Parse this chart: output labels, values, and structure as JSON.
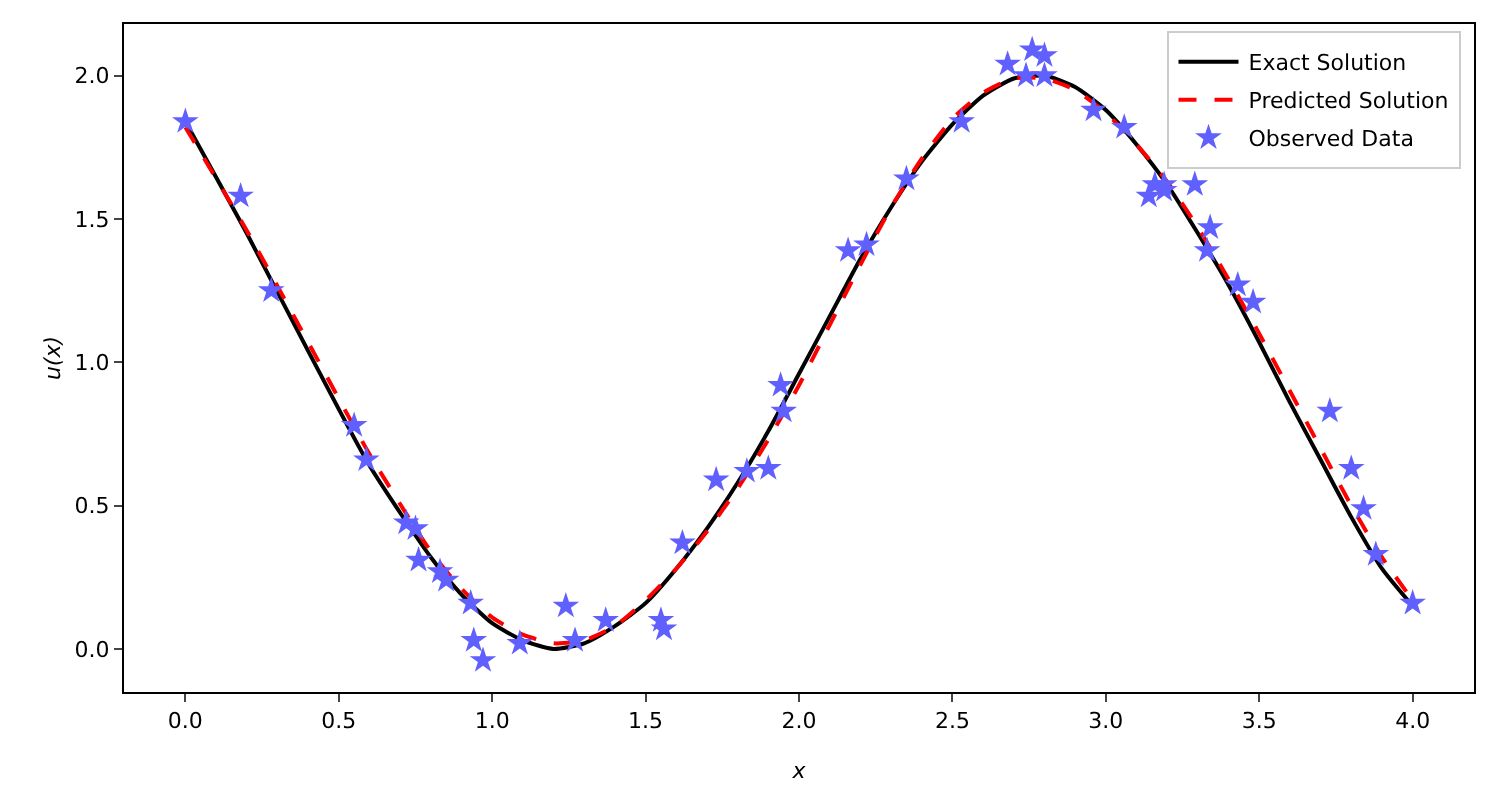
{
  "chart_data": {
    "type": "line",
    "xlabel": "x",
    "ylabel": "u(x)",
    "xlim": [
      -0.2,
      4.2
    ],
    "ylim": [
      -0.15,
      2.18
    ],
    "xticks": [
      {
        "value": 0,
        "label": "0.0"
      },
      {
        "value": 0.5,
        "label": "0.5"
      },
      {
        "value": 1,
        "label": "1.0"
      },
      {
        "value": 1.5,
        "label": "1.5"
      },
      {
        "value": 2,
        "label": "2.0"
      },
      {
        "value": 2.5,
        "label": "2.5"
      },
      {
        "value": 3,
        "label": "3.0"
      },
      {
        "value": 3.5,
        "label": "3.5"
      },
      {
        "value": 4,
        "label": "4.0"
      }
    ],
    "yticks": [
      {
        "value": 0,
        "label": "0.0"
      },
      {
        "value": 0.5,
        "label": "0.5"
      },
      {
        "value": 1,
        "label": "1.0"
      },
      {
        "value": 1.5,
        "label": "1.5"
      },
      {
        "value": 2,
        "label": "2.0"
      }
    ],
    "grid": false,
    "legend": "top right",
    "series": [
      {
        "name": "Exact Solution",
        "color": "#000000",
        "line_style": "solid",
        "marker": "none",
        "x": [
          0,
          0.2,
          0.4,
          0.6,
          0.8,
          0.9,
          1.0,
          1.1,
          1.2,
          1.3,
          1.4,
          1.5,
          1.6,
          1.7,
          1.8,
          1.9,
          2.0,
          2.1,
          2.2,
          2.3,
          2.4,
          2.5,
          2.6,
          2.7,
          2.8,
          2.9,
          3.0,
          3.1,
          3.2,
          3.3,
          3.4,
          3.5,
          3.6,
          3.7,
          3.8,
          3.9,
          4.0
        ],
        "values": [
          1.84,
          1.45,
          1.04,
          0.64,
          0.32,
          0.19,
          0.09,
          0.03,
          0.0,
          0.02,
          0.08,
          0.16,
          0.28,
          0.42,
          0.58,
          0.76,
          0.96,
          1.16,
          1.36,
          1.54,
          1.7,
          1.83,
          1.93,
          1.99,
          2.0,
          1.96,
          1.88,
          1.76,
          1.62,
          1.45,
          1.27,
          1.07,
          0.86,
          0.66,
          0.46,
          0.28,
          0.15
        ]
      },
      {
        "name": "Predicted Solution",
        "color": "#ff0000",
        "line_style": "dashed",
        "marker": "none",
        "x": [
          0,
          0.2,
          0.4,
          0.6,
          0.8,
          0.9,
          1.0,
          1.1,
          1.2,
          1.3,
          1.4,
          1.5,
          1.6,
          1.7,
          1.8,
          1.9,
          2.0,
          2.1,
          2.2,
          2.3,
          2.4,
          2.5,
          2.6,
          2.7,
          2.8,
          2.9,
          3.0,
          3.1,
          3.2,
          3.3,
          3.4,
          3.5,
          3.6,
          3.7,
          3.8,
          3.9,
          4.0
        ],
        "values": [
          1.82,
          1.46,
          1.07,
          0.68,
          0.34,
          0.21,
          0.11,
          0.05,
          0.02,
          0.03,
          0.08,
          0.17,
          0.28,
          0.41,
          0.56,
          0.73,
          0.92,
          1.13,
          1.34,
          1.54,
          1.71,
          1.85,
          1.94,
          1.99,
          1.99,
          1.95,
          1.87,
          1.76,
          1.63,
          1.47,
          1.29,
          1.1,
          0.9,
          0.7,
          0.5,
          0.32,
          0.17
        ]
      },
      {
        "name": "Observed Data",
        "type": "scatter",
        "color": "#6060ff",
        "marker": "star",
        "x": [
          0,
          0.18,
          0.28,
          0.55,
          0.59,
          0.72,
          0.75,
          0.76,
          0.83,
          0.85,
          0.93,
          0.94,
          0.97,
          1.09,
          1.24,
          1.27,
          1.37,
          1.55,
          1.56,
          1.62,
          1.73,
          1.83,
          1.9,
          1.94,
          1.95,
          2.16,
          2.22,
          2.35,
          2.53,
          2.68,
          2.74,
          2.76,
          2.8,
          2.8,
          2.96,
          3.06,
          3.14,
          3.16,
          3.19,
          3.19,
          3.29,
          3.34,
          3.33,
          3.43,
          3.48,
          3.73,
          3.8,
          3.84,
          3.88,
          4.0
        ],
        "values": [
          1.84,
          1.58,
          1.25,
          0.78,
          0.66,
          0.44,
          0.42,
          0.31,
          0.27,
          0.24,
          0.16,
          0.03,
          -0.04,
          0.02,
          0.15,
          0.03,
          0.1,
          0.1,
          0.07,
          0.37,
          0.59,
          0.62,
          0.63,
          0.92,
          0.83,
          1.39,
          1.41,
          1.64,
          1.84,
          2.04,
          2.0,
          2.09,
          2.07,
          2.0,
          1.88,
          1.82,
          1.58,
          1.62,
          1.62,
          1.6,
          1.62,
          1.47,
          1.39,
          1.27,
          1.21,
          0.83,
          0.63,
          0.49,
          0.33,
          0.16
        ]
      }
    ]
  }
}
